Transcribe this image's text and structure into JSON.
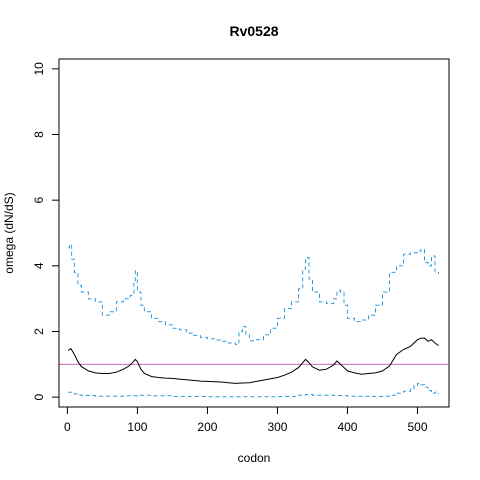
{
  "chart_data": {
    "type": "line",
    "title": "Rv0528",
    "xlabel": "codon",
    "ylabel": "omega (dN/dS)",
    "xlim": [
      -12,
      545
    ],
    "ylim": [
      -0.3,
      10.3
    ],
    "xticks": [
      0,
      100,
      200,
      300,
      400,
      500
    ],
    "yticks": [
      0,
      2,
      4,
      6,
      8,
      10
    ],
    "grid": false,
    "colors": {
      "mean": "#000000",
      "ci": "#3399dd",
      "reference": "#cc66cc"
    },
    "reference_line": 1.0,
    "series": [
      {
        "role": "mean",
        "style": "solid",
        "x": [
          1,
          5,
          10,
          15,
          20,
          30,
          40,
          50,
          60,
          70,
          80,
          88,
          93,
          97,
          100,
          105,
          110,
          120,
          130,
          140,
          150,
          160,
          170,
          180,
          190,
          200,
          210,
          220,
          230,
          240,
          250,
          260,
          270,
          280,
          290,
          300,
          310,
          320,
          330,
          336,
          340,
          345,
          350,
          360,
          370,
          380,
          385,
          390,
          395,
          400,
          410,
          420,
          430,
          440,
          450,
          460,
          470,
          480,
          490,
          500,
          505,
          510,
          515,
          520,
          525,
          530
        ],
        "y": [
          1.42,
          1.48,
          1.3,
          1.08,
          0.93,
          0.8,
          0.74,
          0.72,
          0.72,
          0.76,
          0.85,
          0.95,
          1.05,
          1.15,
          1.08,
          0.85,
          0.72,
          0.63,
          0.6,
          0.58,
          0.57,
          0.55,
          0.53,
          0.51,
          0.49,
          0.48,
          0.47,
          0.46,
          0.44,
          0.42,
          0.43,
          0.44,
          0.48,
          0.52,
          0.56,
          0.6,
          0.67,
          0.76,
          0.9,
          1.05,
          1.15,
          1.05,
          0.92,
          0.82,
          0.85,
          0.98,
          1.1,
          1.0,
          0.9,
          0.8,
          0.74,
          0.7,
          0.72,
          0.74,
          0.8,
          0.95,
          1.3,
          1.45,
          1.55,
          1.75,
          1.8,
          1.8,
          1.7,
          1.75,
          1.65,
          1.57
        ]
      },
      {
        "role": "upper",
        "style": "dashed",
        "x": [
          1,
          3,
          6,
          10,
          15,
          20,
          30,
          40,
          50,
          60,
          70,
          80,
          85,
          90,
          95,
          97,
          100,
          105,
          110,
          120,
          130,
          140,
          150,
          160,
          170,
          180,
          190,
          200,
          210,
          220,
          230,
          240,
          245,
          250,
          255,
          260,
          270,
          280,
          290,
          300,
          310,
          320,
          330,
          336,
          340,
          345,
          350,
          360,
          370,
          380,
          385,
          390,
          395,
          400,
          410,
          420,
          430,
          440,
          450,
          460,
          470,
          480,
          490,
          500,
          505,
          510,
          515,
          520,
          525,
          530
        ],
        "y": [
          4.55,
          4.65,
          4.2,
          3.8,
          3.4,
          3.2,
          3.0,
          2.9,
          2.5,
          2.6,
          2.9,
          3.0,
          3.0,
          3.1,
          3.5,
          3.85,
          3.2,
          2.8,
          2.6,
          2.4,
          2.3,
          2.2,
          2.1,
          2.05,
          1.95,
          1.88,
          1.82,
          1.78,
          1.74,
          1.7,
          1.65,
          1.6,
          2.0,
          2.15,
          1.9,
          1.72,
          1.75,
          1.9,
          2.1,
          2.4,
          2.7,
          2.9,
          3.3,
          3.9,
          4.25,
          3.6,
          3.2,
          2.9,
          2.85,
          3.0,
          3.25,
          3.2,
          2.8,
          2.4,
          2.3,
          2.35,
          2.5,
          2.8,
          3.2,
          3.8,
          4.0,
          4.35,
          4.4,
          4.45,
          4.5,
          4.1,
          4.0,
          4.3,
          3.8,
          3.75
        ]
      },
      {
        "role": "lower",
        "style": "dashed",
        "x": [
          1,
          5,
          10,
          15,
          20,
          40,
          60,
          80,
          100,
          120,
          150,
          200,
          250,
          300,
          330,
          340,
          350,
          380,
          400,
          430,
          450,
          460,
          470,
          480,
          490,
          495,
          500,
          505,
          510,
          515,
          520,
          525,
          530
        ],
        "y": [
          0.15,
          0.15,
          0.1,
          0.07,
          0.05,
          0.03,
          0.03,
          0.04,
          0.06,
          0.04,
          0.02,
          0.01,
          0.01,
          0.02,
          0.06,
          0.08,
          0.06,
          0.05,
          0.03,
          0.02,
          0.03,
          0.06,
          0.12,
          0.18,
          0.25,
          0.35,
          0.42,
          0.38,
          0.3,
          0.2,
          0.12,
          0.15,
          0.1
        ]
      }
    ]
  }
}
